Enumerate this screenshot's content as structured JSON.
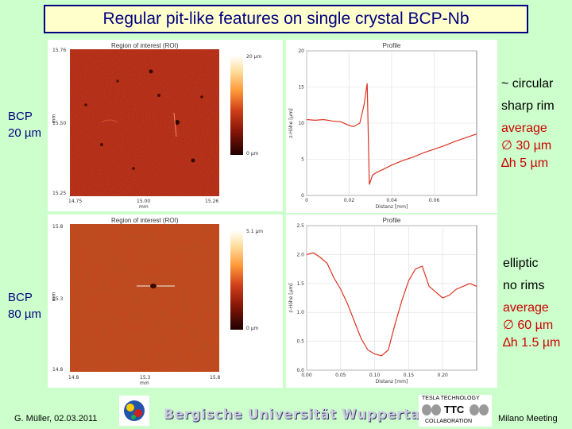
{
  "slide": {
    "title": "Regular pit-like features on single crystal BCP-Nb",
    "left_labels": [
      {
        "line1": "BCP",
        "line2": "20 µm"
      },
      {
        "line1": "BCP",
        "line2": "80 µm"
      }
    ],
    "right_text_top": {
      "l1": "~ circular",
      "l2": "sharp rim",
      "l3": "average",
      "l4": "∅ 30 µm",
      "l5": "∆h 5 µm"
    },
    "right_text_bottom": {
      "l1": "elliptic",
      "l2": "no rims",
      "l3": "average",
      "l4": "∅ 60 µm",
      "l5": "∆h 1.5 µm"
    },
    "footer": {
      "author": "G. Müller, 02.03.2011",
      "university": "Bergische Universität Wuppertal",
      "ttc_top": "TESLA TECHNOLOGY",
      "ttc_mid": "TTC",
      "ttc_bottom": "COLLABORATION",
      "meeting": "Milano Meeting"
    }
  },
  "roi_top": {
    "title": "Region of interest (ROI)",
    "y_ticks": [
      "15.76",
      "15.50",
      "15.25"
    ],
    "y_unit": "mm",
    "x_ticks": [
      "14.75",
      "15.00",
      "15.26"
    ],
    "x_unit": "mm",
    "cbar_max": "20 µm",
    "cbar_min": "0 µm"
  },
  "roi_bottom": {
    "title": "Region of interest (ROI)",
    "y_ticks": [
      "15.8",
      "15.3",
      "14.8"
    ],
    "y_unit": "mm",
    "x_ticks": [
      "14.8",
      "15.3",
      "15.8"
    ],
    "x_unit": "mm",
    "cbar_max": "5.1 µm",
    "cbar_min": "0 µm"
  },
  "chart_data": [
    {
      "type": "line",
      "title": "Profile",
      "xlabel": "Distanz [mm]",
      "ylabel": "z-Höhe [µm]",
      "xlim": [
        0,
        0.08
      ],
      "ylim": [
        0,
        20
      ],
      "x_ticks": [
        "0",
        "0.02",
        "0.04",
        "0.06"
      ],
      "y_ticks": [
        "0",
        "5",
        "10",
        "15",
        "20"
      ],
      "grid": true,
      "series": [
        {
          "color": "#dd3322",
          "x": [
            0.0,
            0.004,
            0.008,
            0.012,
            0.016,
            0.019,
            0.022,
            0.025,
            0.027,
            0.0285,
            0.0295,
            0.031,
            0.033,
            0.036,
            0.04,
            0.045,
            0.05,
            0.055,
            0.06,
            0.065,
            0.07,
            0.075,
            0.08
          ],
          "y": [
            10.5,
            10.4,
            10.5,
            10.3,
            10.2,
            9.8,
            9.5,
            10.0,
            12.5,
            15.5,
            1.5,
            2.8,
            3.2,
            3.6,
            4.2,
            4.8,
            5.3,
            5.9,
            6.4,
            6.9,
            7.5,
            8.0,
            8.5
          ]
        }
      ]
    },
    {
      "type": "line",
      "title": "Profile",
      "xlabel": "Distanz [mm]",
      "ylabel": "z-Höhe [µm]",
      "xlim": [
        0,
        0.25
      ],
      "ylim": [
        0,
        2.5
      ],
      "x_ticks": [
        "0.00",
        "0.05",
        "0.10",
        "0.15",
        "0.20"
      ],
      "y_ticks": [
        "0.0",
        "0.5",
        "1.0",
        "1.5",
        "2.0",
        "2.5"
      ],
      "grid": true,
      "series": [
        {
          "color": "#dd3322",
          "x": [
            0.0,
            0.01,
            0.02,
            0.03,
            0.04,
            0.05,
            0.06,
            0.07,
            0.08,
            0.09,
            0.1,
            0.11,
            0.12,
            0.13,
            0.14,
            0.15,
            0.16,
            0.17,
            0.18,
            0.19,
            0.2,
            0.21,
            0.22,
            0.23,
            0.24,
            0.25
          ],
          "y": [
            2.0,
            2.03,
            1.95,
            1.85,
            1.6,
            1.4,
            1.15,
            0.85,
            0.55,
            0.35,
            0.28,
            0.25,
            0.35,
            0.8,
            1.2,
            1.55,
            1.75,
            1.8,
            1.45,
            1.35,
            1.25,
            1.3,
            1.4,
            1.45,
            1.5,
            1.45
          ]
        }
      ]
    }
  ]
}
